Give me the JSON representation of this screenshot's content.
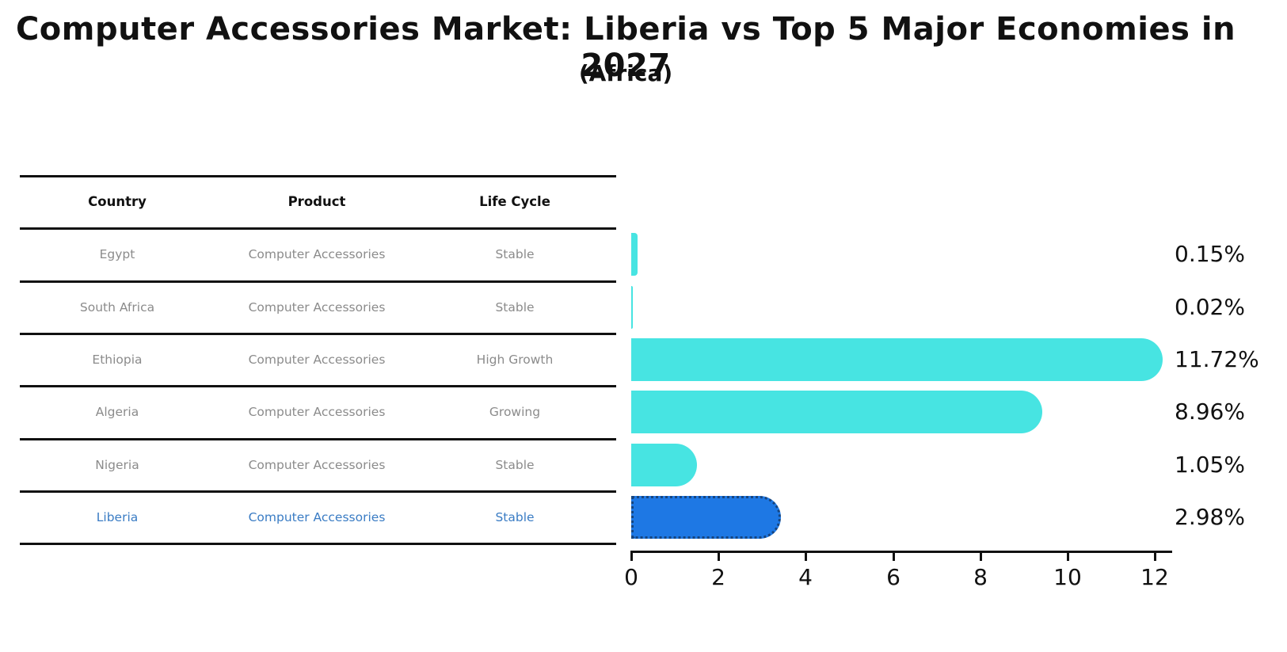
{
  "title": "Computer Accessories Market: Liberia vs Top 5 Major Economies in 2027",
  "subtitle": "(Africa)",
  "table": {
    "headers": [
      "Country",
      "Product",
      "Life Cycle"
    ],
    "rows": [
      {
        "country": "Egypt",
        "product": "Computer Accessories",
        "life_cycle": "Stable",
        "value": 0.15,
        "value_label": "0.15%",
        "highlight": false
      },
      {
        "country": "South Africa",
        "product": "Computer Accessories",
        "life_cycle": "Stable",
        "value": 0.02,
        "value_label": "0.02%",
        "highlight": false
      },
      {
        "country": "Ethiopia",
        "product": "Computer Accessories",
        "life_cycle": "High Growth",
        "value": 11.72,
        "value_label": "11.72%",
        "highlight": false
      },
      {
        "country": "Algeria",
        "product": "Computer Accessories",
        "life_cycle": "Growing",
        "value": 8.96,
        "value_label": "8.96%",
        "highlight": false
      },
      {
        "country": "Nigeria",
        "product": "Computer Accessories",
        "life_cycle": "Stable",
        "value": 1.05,
        "value_label": "1.05%",
        "highlight": false
      },
      {
        "country": "Liberia",
        "product": "Computer Accessories",
        "life_cycle": "Stable",
        "value": 2.98,
        "value_label": "2.98%",
        "highlight": true
      }
    ]
  },
  "chart_data": {
    "type": "bar",
    "orientation": "horizontal",
    "title": "Computer Accessories Market: Liberia vs Top 5 Major Economies in 2027",
    "subtitle": "(Africa)",
    "categories": [
      "Egypt",
      "South Africa",
      "Ethiopia",
      "Algeria",
      "Nigeria",
      "Liberia"
    ],
    "values": [
      0.15,
      0.02,
      11.72,
      8.96,
      1.05,
      2.98
    ],
    "value_labels": [
      "0.15%",
      "0.02%",
      "11.72%",
      "8.96%",
      "1.05%",
      "2.98%"
    ],
    "xlabel": "",
    "ylabel": "",
    "xlim": [
      0,
      12.4
    ],
    "x_ticks": [
      0,
      2,
      4,
      6,
      8,
      10,
      12
    ],
    "grid": false,
    "legend": false,
    "highlight_category": "Liberia"
  },
  "colors": {
    "bar_default": "#47e4e2",
    "bar_highlight": "#1e78e4",
    "bar_highlight_border": "#16457f",
    "table_text": "#8b8b8b",
    "highlight_text": "#3a7cc4",
    "line": "#111111",
    "text": "#111111"
  }
}
